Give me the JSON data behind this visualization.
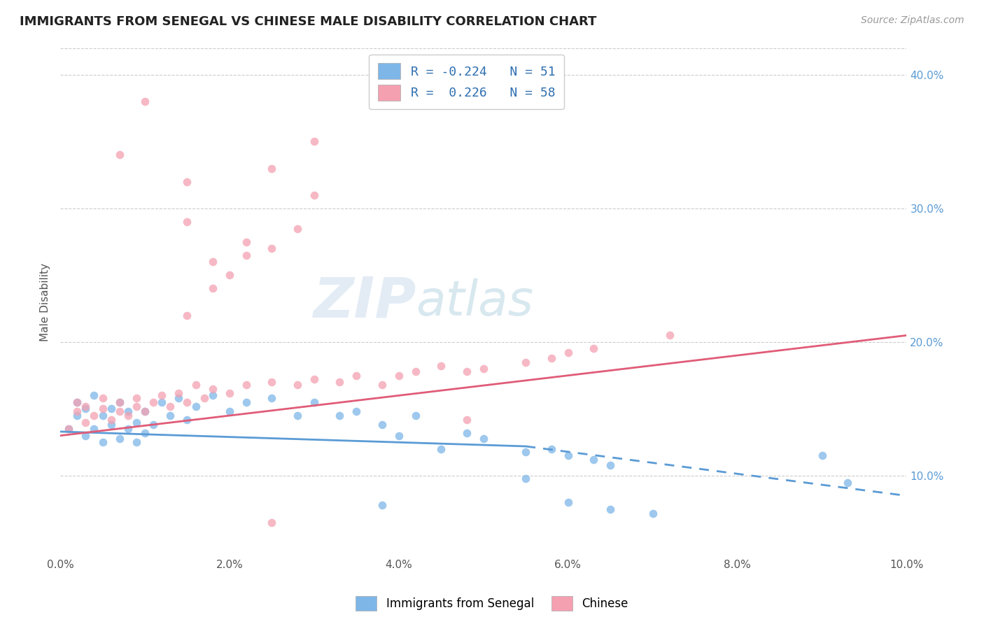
{
  "title": "IMMIGRANTS FROM SENEGAL VS CHINESE MALE DISABILITY CORRELATION CHART",
  "source": "Source: ZipAtlas.com",
  "ylabel_label": "Male Disability",
  "legend_label1": "Immigrants from Senegal",
  "legend_label2": "Chinese",
  "R1": -0.224,
  "N1": 51,
  "R2": 0.226,
  "N2": 58,
  "color1": "#7EB6E8",
  "color2": "#F4A0B0",
  "line_color1": "#5B9BD5",
  "line_color2": "#E05C78",
  "watermark_zip": "ZIP",
  "watermark_atlas": "atlas",
  "xlim": [
    0.0,
    0.1
  ],
  "ylim": [
    0.04,
    0.42
  ],
  "xticks": [
    0.0,
    0.02,
    0.04,
    0.06,
    0.08,
    0.1
  ],
  "yticks": [
    0.1,
    0.2,
    0.3,
    0.4
  ],
  "xtick_labels": [
    "0.0%",
    "2.0%",
    "4.0%",
    "6.0%",
    "8.0%",
    "10.0%"
  ],
  "ytick_labels": [
    "10.0%",
    "20.0%",
    "30.0%",
    "40.0%"
  ],
  "senegal_x": [
    0.001,
    0.002,
    0.002,
    0.003,
    0.003,
    0.004,
    0.004,
    0.005,
    0.005,
    0.006,
    0.006,
    0.007,
    0.007,
    0.008,
    0.008,
    0.009,
    0.009,
    0.01,
    0.01,
    0.011,
    0.012,
    0.013,
    0.014,
    0.015,
    0.016,
    0.018,
    0.02,
    0.022,
    0.025,
    0.028,
    0.03,
    0.033,
    0.035,
    0.038,
    0.04,
    0.042,
    0.045,
    0.048,
    0.05,
    0.055,
    0.058,
    0.06,
    0.063,
    0.065,
    0.038,
    0.055,
    0.06,
    0.065,
    0.07,
    0.09,
    0.093
  ],
  "senegal_y": [
    0.135,
    0.145,
    0.155,
    0.13,
    0.15,
    0.135,
    0.16,
    0.125,
    0.145,
    0.138,
    0.15,
    0.128,
    0.155,
    0.135,
    0.148,
    0.125,
    0.14,
    0.132,
    0.148,
    0.138,
    0.155,
    0.145,
    0.158,
    0.142,
    0.152,
    0.16,
    0.148,
    0.155,
    0.158,
    0.145,
    0.155,
    0.145,
    0.148,
    0.138,
    0.13,
    0.145,
    0.12,
    0.132,
    0.128,
    0.118,
    0.12,
    0.115,
    0.112,
    0.108,
    0.078,
    0.098,
    0.08,
    0.075,
    0.072,
    0.115,
    0.095
  ],
  "chinese_x": [
    0.001,
    0.002,
    0.002,
    0.003,
    0.003,
    0.004,
    0.005,
    0.005,
    0.006,
    0.007,
    0.007,
    0.008,
    0.009,
    0.009,
    0.01,
    0.011,
    0.012,
    0.013,
    0.014,
    0.015,
    0.016,
    0.017,
    0.018,
    0.02,
    0.022,
    0.025,
    0.028,
    0.03,
    0.033,
    0.035,
    0.038,
    0.04,
    0.042,
    0.045,
    0.048,
    0.05,
    0.055,
    0.058,
    0.06,
    0.063,
    0.015,
    0.018,
    0.02,
    0.022,
    0.025,
    0.028,
    0.018,
    0.022,
    0.03,
    0.015,
    0.025,
    0.03,
    0.007,
    0.01,
    0.015,
    0.025,
    0.072,
    0.048
  ],
  "chinese_y": [
    0.135,
    0.148,
    0.155,
    0.14,
    0.152,
    0.145,
    0.15,
    0.158,
    0.142,
    0.148,
    0.155,
    0.145,
    0.152,
    0.158,
    0.148,
    0.155,
    0.16,
    0.152,
    0.162,
    0.155,
    0.168,
    0.158,
    0.165,
    0.162,
    0.168,
    0.17,
    0.168,
    0.172,
    0.17,
    0.175,
    0.168,
    0.175,
    0.178,
    0.182,
    0.178,
    0.18,
    0.185,
    0.188,
    0.192,
    0.195,
    0.22,
    0.24,
    0.25,
    0.265,
    0.27,
    0.285,
    0.26,
    0.275,
    0.31,
    0.32,
    0.33,
    0.35,
    0.34,
    0.38,
    0.29,
    0.065,
    0.205,
    0.142
  ],
  "line1_x0": 0.0,
  "line1_y0": 0.133,
  "line1_x1": 0.055,
  "line1_y1": 0.122,
  "line1_dash_x1": 0.1,
  "line1_dash_y1": 0.085,
  "line2_x0": 0.0,
  "line2_y0": 0.13,
  "line2_x1": 0.1,
  "line2_y1": 0.205
}
